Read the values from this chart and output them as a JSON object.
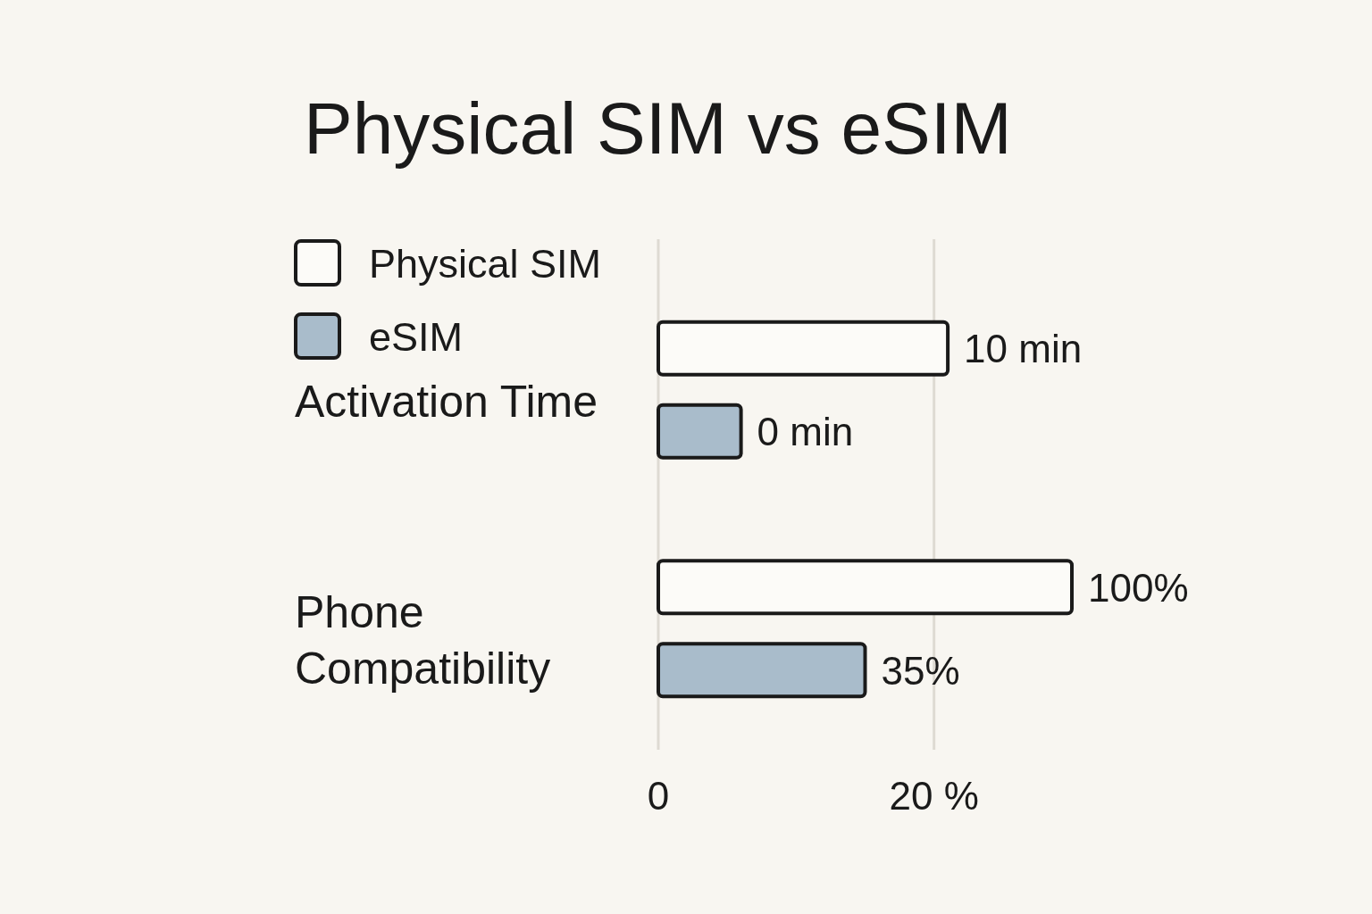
{
  "chart_data": {
    "type": "bar",
    "orientation": "horizontal",
    "title": "Physical SIM vs eSIM",
    "categories": [
      "Activation Time",
      "Phone Compatibility"
    ],
    "series": [
      {
        "name": "Physical SIM",
        "color": "#fcfbf8",
        "values": [
          21,
          30
        ]
      },
      {
        "name": "eSIM",
        "color": "#a9bccb",
        "values": [
          6,
          15
        ]
      }
    ],
    "xlim": [
      0,
      30
    ],
    "xticks": [
      0,
      {
        "value": 20,
        "label": "20 %"
      }
    ],
    "grid": "x",
    "legend": "top left",
    "annotations": [
      "10 min",
      "0 min",
      "100%",
      "35%"
    ]
  }
}
